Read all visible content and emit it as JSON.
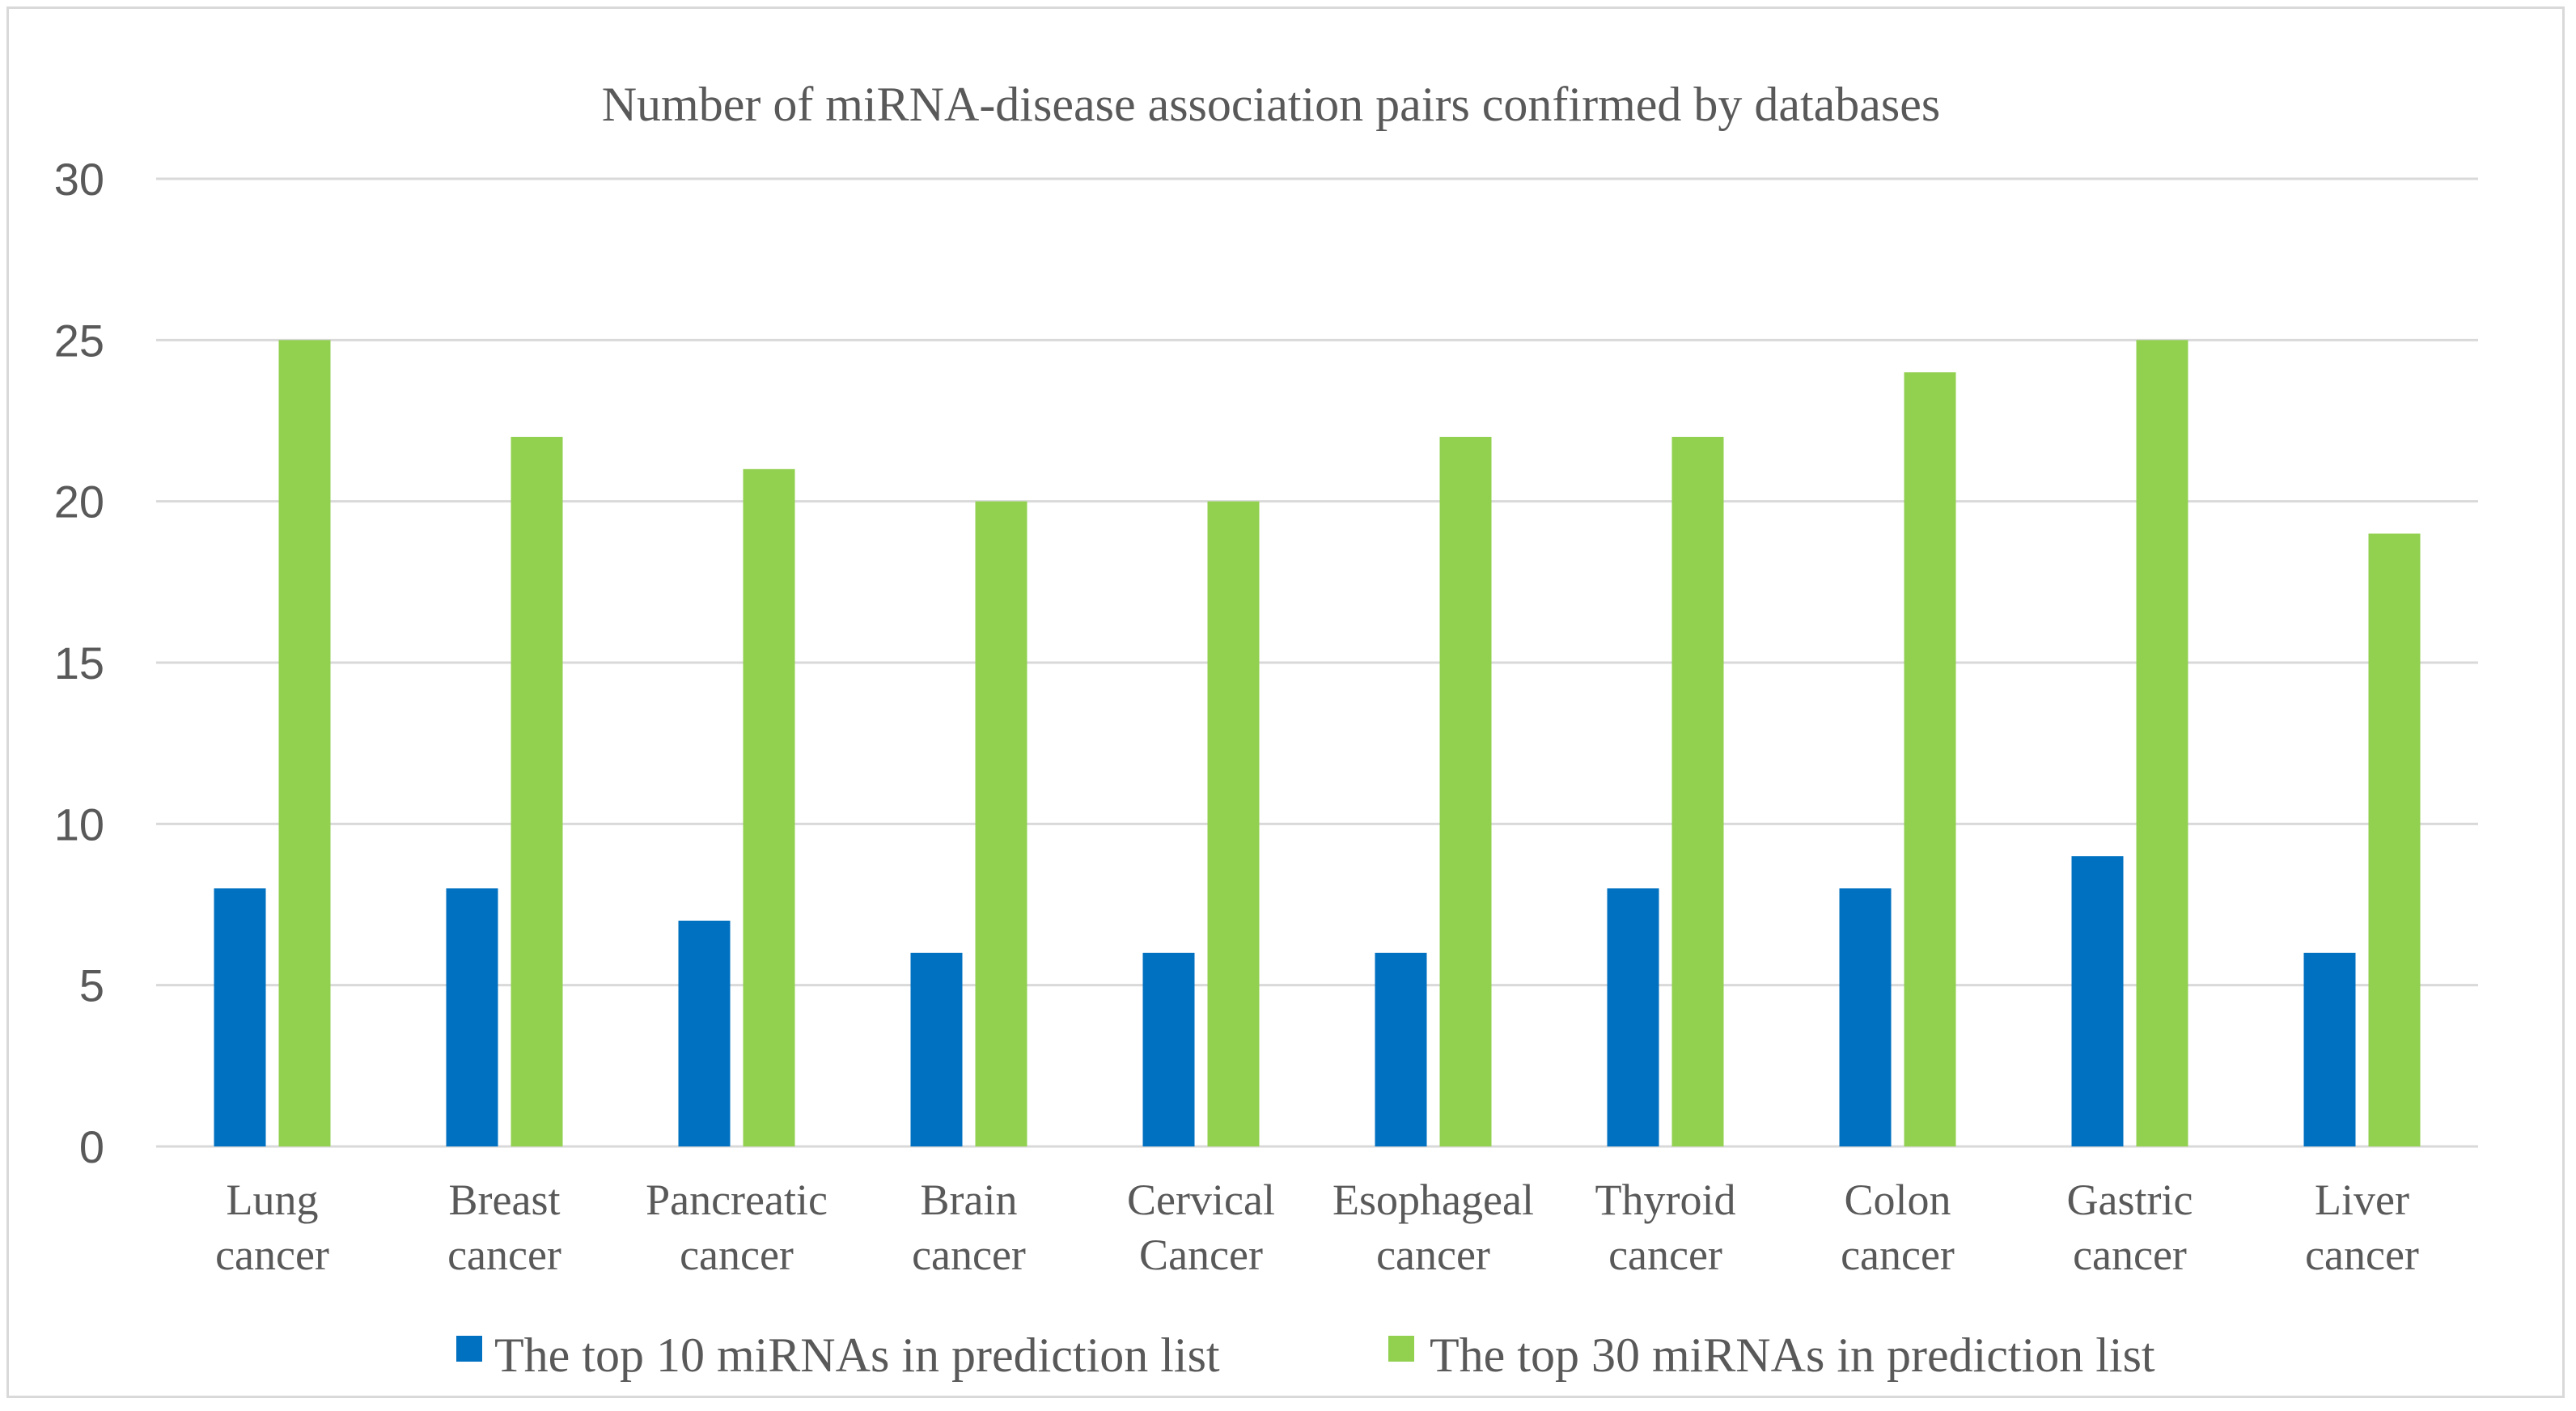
{
  "chart_data": {
    "type": "bar",
    "title": "Number of miRNA-disease association pairs confirmed by databases",
    "categories": [
      [
        "Lung",
        "cancer"
      ],
      [
        "Breast",
        "cancer"
      ],
      [
        "Pancreatic",
        "cancer"
      ],
      [
        "Brain",
        "cancer"
      ],
      [
        "Cervical",
        "Cancer"
      ],
      [
        "Esophageal",
        "cancer"
      ],
      [
        "Thyroid",
        "cancer"
      ],
      [
        "Colon",
        "cancer"
      ],
      [
        "Gastric",
        "cancer"
      ],
      [
        "Liver",
        "cancer"
      ]
    ],
    "series": [
      {
        "name": "The top 10 miRNAs in prediction list",
        "color": "#0070c0",
        "values": [
          8,
          8,
          7,
          6,
          6,
          6,
          8,
          8,
          9,
          6
        ]
      },
      {
        "name": "The top 30 miRNAs in prediction list",
        "color": "#92d050",
        "values": [
          25,
          22,
          21,
          20,
          20,
          22,
          22,
          24,
          25,
          19
        ]
      }
    ],
    "ylim": [
      0,
      30
    ],
    "yticks": [
      0,
      5,
      10,
      15,
      20,
      25,
      30
    ],
    "grid": true,
    "legend": "bottom"
  }
}
